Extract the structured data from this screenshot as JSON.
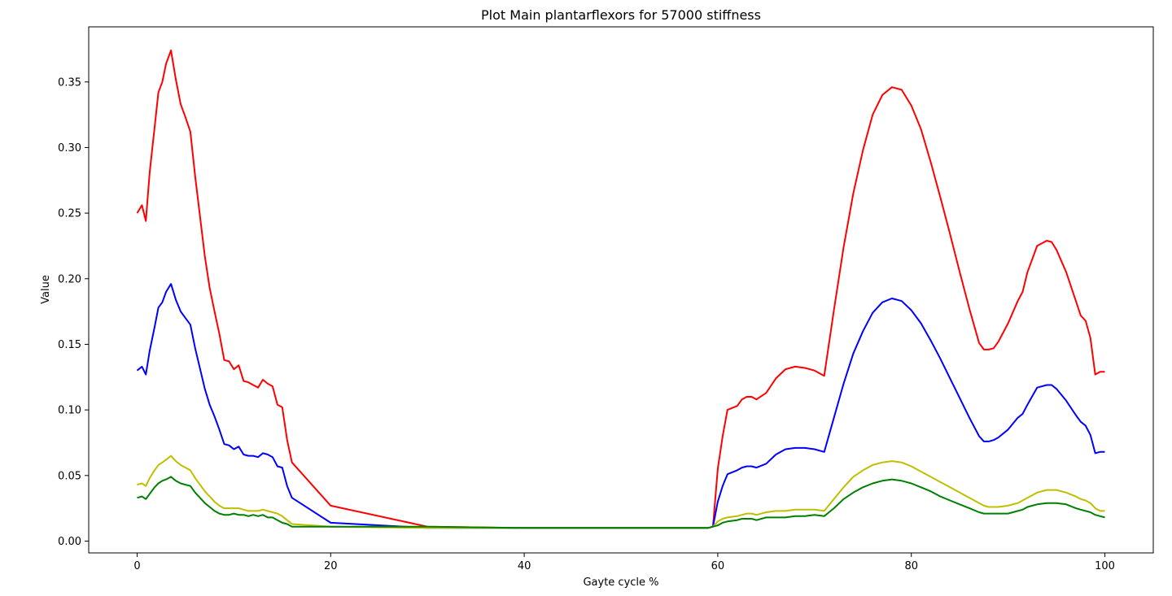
{
  "chart_data": {
    "type": "line",
    "title": "Plot Main plantarflexors for 57000 stiffness",
    "xlabel": "Gayte cycle %",
    "ylabel": "Value",
    "xlim": [
      -5,
      105
    ],
    "ylim": [
      -0.009,
      0.392
    ],
    "xticks": [
      0,
      20,
      40,
      60,
      80,
      100
    ],
    "xtick_labels": [
      "0",
      "20",
      "40",
      "60",
      "80",
      "100"
    ],
    "yticks": [
      0.0,
      0.05,
      0.1,
      0.15,
      0.2,
      0.25,
      0.3,
      0.35
    ],
    "ytick_labels": [
      "0.00",
      "0.05",
      "0.10",
      "0.15",
      "0.20",
      "0.25",
      "0.30",
      "0.35"
    ],
    "grid": false,
    "legend": "none",
    "series": [
      {
        "color": "#ff0000",
        "x": [
          0,
          0.5,
          0.9,
          1.3,
          1.8,
          2.2,
          2.6,
          3.0,
          3.5,
          4.0,
          4.5,
          5.0,
          5.5,
          6.0,
          7.0,
          7.5,
          8.0,
          8.5,
          9.0,
          9.5,
          10.0,
          10.5,
          11.0,
          11.5,
          12.0,
          12.5,
          13.0,
          13.5,
          14.0,
          14.5,
          15.0,
          15.5,
          16.0,
          20,
          30,
          40,
          50,
          58,
          59,
          59.5,
          60,
          60.5,
          61,
          62,
          62.5,
          63,
          63.5,
          64,
          65,
          66,
          67,
          68,
          69,
          70,
          71,
          72,
          73,
          74,
          75,
          76,
          77,
          78,
          79,
          80,
          81,
          82,
          83,
          84,
          85,
          86,
          87,
          87.5,
          88,
          88.5,
          89,
          90,
          91,
          91.5,
          92,
          93,
          94,
          94.5,
          95,
          96,
          97,
          97.5,
          98,
          98.5,
          99,
          99.5,
          100
        ],
        "y": [
          0.25,
          0.256,
          0.244,
          0.281,
          0.315,
          0.342,
          0.35,
          0.364,
          0.374,
          0.352,
          0.333,
          0.323,
          0.312,
          0.278,
          0.217,
          0.193,
          0.175,
          0.158,
          0.138,
          0.137,
          0.131,
          0.134,
          0.122,
          0.121,
          0.119,
          0.117,
          0.123,
          0.12,
          0.118,
          0.104,
          0.102,
          0.077,
          0.06,
          0.027,
          0.011,
          0.01,
          0.01,
          0.01,
          0.01,
          0.011,
          0.055,
          0.08,
          0.1,
          0.103,
          0.108,
          0.11,
          0.11,
          0.108,
          0.113,
          0.124,
          0.131,
          0.133,
          0.132,
          0.13,
          0.126,
          0.176,
          0.224,
          0.265,
          0.298,
          0.325,
          0.34,
          0.346,
          0.344,
          0.332,
          0.314,
          0.289,
          0.262,
          0.234,
          0.205,
          0.177,
          0.151,
          0.146,
          0.146,
          0.147,
          0.152,
          0.166,
          0.183,
          0.19,
          0.205,
          0.225,
          0.229,
          0.228,
          0.222,
          0.205,
          0.183,
          0.172,
          0.168,
          0.155,
          0.127,
          0.129,
          0.129
        ]
      },
      {
        "color": "#0000ff",
        "x": [
          0,
          0.5,
          0.9,
          1.3,
          1.8,
          2.2,
          2.6,
          3.0,
          3.5,
          4.0,
          4.5,
          5.0,
          5.5,
          6.0,
          7.0,
          7.5,
          8.0,
          8.5,
          9.0,
          9.5,
          10.0,
          10.5,
          11.0,
          11.5,
          12.0,
          12.5,
          13.0,
          13.5,
          14.0,
          14.5,
          15.0,
          15.5,
          16.0,
          20,
          30,
          40,
          50,
          58,
          59,
          59.5,
          60,
          60.5,
          61,
          62,
          62.5,
          63,
          63.5,
          64,
          65,
          66,
          67,
          68,
          69,
          70,
          71,
          72,
          73,
          74,
          75,
          76,
          77,
          78,
          79,
          80,
          81,
          82,
          83,
          84,
          85,
          86,
          87,
          87.5,
          88,
          88.5,
          89,
          90,
          91,
          91.5,
          92,
          93,
          94,
          94.5,
          95,
          96,
          97,
          97.5,
          98,
          98.5,
          99,
          99.5,
          100
        ],
        "y": [
          0.13,
          0.133,
          0.127,
          0.145,
          0.163,
          0.178,
          0.182,
          0.19,
          0.196,
          0.184,
          0.175,
          0.17,
          0.165,
          0.147,
          0.116,
          0.104,
          0.095,
          0.085,
          0.074,
          0.073,
          0.07,
          0.072,
          0.066,
          0.065,
          0.065,
          0.064,
          0.067,
          0.066,
          0.064,
          0.057,
          0.056,
          0.042,
          0.033,
          0.014,
          0.01,
          0.01,
          0.01,
          0.01,
          0.01,
          0.011,
          0.03,
          0.042,
          0.051,
          0.054,
          0.056,
          0.057,
          0.057,
          0.056,
          0.059,
          0.066,
          0.07,
          0.071,
          0.071,
          0.07,
          0.068,
          0.094,
          0.12,
          0.143,
          0.16,
          0.174,
          0.182,
          0.185,
          0.183,
          0.176,
          0.166,
          0.153,
          0.139,
          0.124,
          0.109,
          0.094,
          0.08,
          0.076,
          0.076,
          0.077,
          0.079,
          0.085,
          0.094,
          0.097,
          0.104,
          0.117,
          0.119,
          0.119,
          0.116,
          0.107,
          0.096,
          0.091,
          0.088,
          0.081,
          0.067,
          0.068,
          0.068
        ]
      },
      {
        "color": "#bfbf00",
        "x": [
          0,
          0.5,
          0.9,
          1.3,
          1.8,
          2.2,
          2.6,
          3.0,
          3.5,
          4.0,
          4.5,
          5.0,
          5.5,
          6.0,
          7.0,
          7.5,
          8.0,
          8.5,
          9.0,
          9.5,
          10.0,
          10.5,
          11.0,
          11.5,
          12.0,
          12.5,
          13.0,
          13.5,
          14.0,
          14.5,
          15.0,
          15.5,
          16.0,
          20,
          30,
          40,
          50,
          58,
          59,
          59.5,
          60,
          60.5,
          61,
          62,
          62.5,
          63,
          63.5,
          64,
          65,
          66,
          67,
          68,
          69,
          70,
          71,
          72,
          73,
          74,
          75,
          76,
          77,
          78,
          79,
          80,
          81,
          82,
          83,
          84,
          85,
          86,
          87,
          87.5,
          88,
          88.5,
          89,
          90,
          91,
          91.5,
          92,
          93,
          94,
          94.5,
          95,
          96,
          97,
          97.5,
          98,
          98.5,
          99,
          99.5,
          100
        ],
        "y": [
          0.043,
          0.044,
          0.042,
          0.048,
          0.054,
          0.058,
          0.06,
          0.062,
          0.065,
          0.061,
          0.058,
          0.056,
          0.054,
          0.048,
          0.038,
          0.034,
          0.03,
          0.027,
          0.025,
          0.025,
          0.025,
          0.025,
          0.024,
          0.023,
          0.023,
          0.023,
          0.024,
          0.023,
          0.022,
          0.021,
          0.019,
          0.016,
          0.013,
          0.011,
          0.01,
          0.01,
          0.01,
          0.01,
          0.01,
          0.011,
          0.015,
          0.017,
          0.018,
          0.019,
          0.02,
          0.021,
          0.021,
          0.02,
          0.022,
          0.023,
          0.023,
          0.024,
          0.024,
          0.024,
          0.023,
          0.032,
          0.041,
          0.049,
          0.054,
          0.058,
          0.06,
          0.061,
          0.06,
          0.057,
          0.053,
          0.049,
          0.045,
          0.041,
          0.037,
          0.033,
          0.029,
          0.027,
          0.026,
          0.026,
          0.026,
          0.027,
          0.029,
          0.031,
          0.033,
          0.037,
          0.039,
          0.039,
          0.039,
          0.037,
          0.034,
          0.032,
          0.031,
          0.029,
          0.025,
          0.023,
          0.023
        ]
      },
      {
        "color": "#008000",
        "x": [
          0,
          0.5,
          0.9,
          1.3,
          1.8,
          2.2,
          2.6,
          3.0,
          3.5,
          4.0,
          4.5,
          5.0,
          5.5,
          6.0,
          7.0,
          7.5,
          8.0,
          8.5,
          9.0,
          9.5,
          10.0,
          10.5,
          11.0,
          11.5,
          12.0,
          12.5,
          13.0,
          13.5,
          14.0,
          14.5,
          15.0,
          15.5,
          16.0,
          20,
          30,
          40,
          50,
          58,
          59,
          59.5,
          60,
          60.5,
          61,
          62,
          62.5,
          63,
          63.5,
          64,
          65,
          66,
          67,
          68,
          69,
          70,
          71,
          72,
          73,
          74,
          75,
          76,
          77,
          78,
          79,
          80,
          81,
          82,
          83,
          84,
          85,
          86,
          87,
          87.5,
          88,
          88.5,
          89,
          90,
          91,
          91.5,
          92,
          93,
          94,
          94.5,
          95,
          96,
          97,
          97.5,
          98,
          98.5,
          99,
          99.5,
          100
        ],
        "y": [
          0.033,
          0.034,
          0.032,
          0.036,
          0.041,
          0.044,
          0.046,
          0.047,
          0.049,
          0.046,
          0.044,
          0.043,
          0.042,
          0.037,
          0.029,
          0.026,
          0.023,
          0.021,
          0.02,
          0.02,
          0.021,
          0.02,
          0.02,
          0.019,
          0.02,
          0.019,
          0.02,
          0.018,
          0.018,
          0.016,
          0.014,
          0.013,
          0.011,
          0.011,
          0.011,
          0.01,
          0.01,
          0.01,
          0.01,
          0.011,
          0.012,
          0.014,
          0.015,
          0.016,
          0.017,
          0.017,
          0.017,
          0.016,
          0.018,
          0.018,
          0.018,
          0.019,
          0.019,
          0.02,
          0.019,
          0.025,
          0.032,
          0.037,
          0.041,
          0.044,
          0.046,
          0.047,
          0.046,
          0.044,
          0.041,
          0.038,
          0.034,
          0.031,
          0.028,
          0.025,
          0.022,
          0.021,
          0.021,
          0.021,
          0.021,
          0.021,
          0.023,
          0.024,
          0.026,
          0.028,
          0.029,
          0.029,
          0.029,
          0.028,
          0.025,
          0.024,
          0.023,
          0.022,
          0.02,
          0.019,
          0.018
        ]
      }
    ]
  }
}
